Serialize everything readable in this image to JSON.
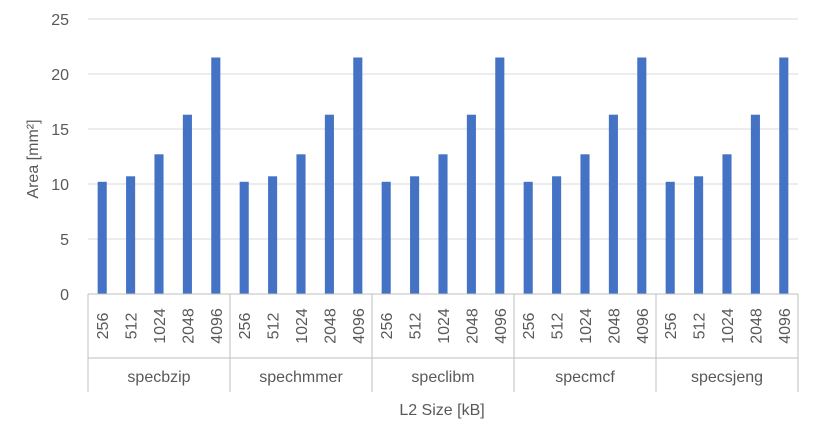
{
  "chart_data": {
    "type": "bar",
    "xlabel": "L2 Size [kB]",
    "ylabel": "Area [mm²]",
    "ylim": [
      0,
      25
    ],
    "yticks": [
      0,
      5,
      10,
      15,
      20,
      25
    ],
    "grid": true,
    "bar_color": "#4472C4",
    "groups": [
      {
        "name": "specbzip",
        "categories": [
          "256",
          "512",
          "1024",
          "2048",
          "4096"
        ],
        "values": [
          10.2,
          10.7,
          12.7,
          16.3,
          21.5
        ]
      },
      {
        "name": "spechmmer",
        "categories": [
          "256",
          "512",
          "1024",
          "2048",
          "4096"
        ],
        "values": [
          10.2,
          10.7,
          12.7,
          16.3,
          21.5
        ]
      },
      {
        "name": "speclibm",
        "categories": [
          "256",
          "512",
          "1024",
          "2048",
          "4096"
        ],
        "values": [
          10.2,
          10.7,
          12.7,
          16.3,
          21.5
        ]
      },
      {
        "name": "specmcf",
        "categories": [
          "256",
          "512",
          "1024",
          "2048",
          "4096"
        ],
        "values": [
          10.2,
          10.7,
          12.7,
          16.3,
          21.5
        ]
      },
      {
        "name": "specsjeng",
        "categories": [
          "256",
          "512",
          "1024",
          "2048",
          "4096"
        ],
        "values": [
          10.2,
          10.7,
          12.7,
          16.3,
          21.5
        ]
      }
    ]
  }
}
